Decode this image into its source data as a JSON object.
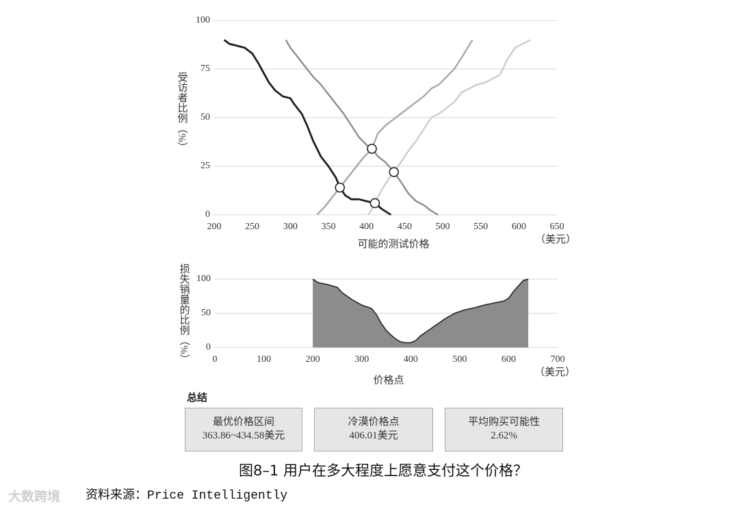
{
  "chart_data": [
    {
      "type": "line",
      "ylabel": "受访者比例（%）",
      "xlabel": "可能的测试价格",
      "xunit": "（美元）",
      "xlim": [
        200,
        650
      ],
      "xticks": [
        200,
        250,
        300,
        350,
        400,
        450,
        500,
        550,
        600,
        650
      ],
      "ylim": [
        0,
        100
      ],
      "yticks": [
        0,
        25,
        50,
        75,
        100
      ],
      "grid": true,
      "series": [
        {
          "color": "#1e1e1e",
          "x": [
            213,
            220,
            230,
            240,
            250,
            258,
            265,
            272,
            280,
            290,
            300,
            305,
            315,
            322,
            330,
            340,
            350,
            360,
            365,
            372,
            380,
            390,
            400,
            411,
            420,
            432
          ],
          "values": [
            90,
            88,
            87,
            86,
            83,
            78,
            73,
            68,
            64,
            61,
            60,
            57,
            52,
            46,
            38,
            30,
            25,
            19,
            14,
            10,
            8,
            8,
            7,
            6,
            3,
            0
          ]
        },
        {
          "color": "#8c8c8c",
          "x": [
            294,
            300,
            310,
            320,
            330,
            340,
            350,
            360,
            370,
            380,
            390,
            400,
            407,
            415,
            425,
            436,
            445,
            455,
            465,
            475,
            485,
            494
          ],
          "values": [
            90,
            86,
            81,
            76,
            71,
            67,
            62,
            57,
            52,
            46,
            40,
            36,
            34,
            30,
            27,
            22,
            17,
            11,
            7,
            5,
            2,
            0
          ]
        },
        {
          "color": "#a6a6a6",
          "x": [
            335,
            345,
            355,
            365,
            375,
            385,
            395,
            407,
            415,
            425,
            435,
            445,
            455,
            465,
            475,
            485,
            495,
            505,
            515,
            525,
            539
          ],
          "values": [
            0,
            4,
            9,
            14,
            19,
            24,
            29,
            34,
            42,
            46,
            49,
            52,
            55,
            58,
            61,
            65,
            67,
            71,
            75,
            81,
            90
          ]
        },
        {
          "color": "#cccccc",
          "x": [
            402,
            406,
            411,
            420,
            430,
            436,
            445,
            455,
            465,
            475,
            485,
            495,
            505,
            515,
            525,
            535,
            545,
            555,
            565,
            575,
            585,
            595,
            605,
            615
          ],
          "values": [
            0,
            2,
            6,
            13,
            19,
            22,
            27,
            33,
            38,
            44,
            50,
            52,
            55,
            58,
            63,
            65,
            67,
            68,
            70,
            72,
            80,
            86,
            88,
            90
          ]
        }
      ],
      "intersections": {
        "x": [
          365,
          407,
          411,
          436
        ],
        "y": [
          14,
          34,
          6,
          22
        ]
      }
    },
    {
      "type": "area",
      "ylabel": "损失销量的比例（%）",
      "xlabel": "价格点",
      "xunit": "（美元）",
      "xlim": [
        0,
        700
      ],
      "xticks": [
        0,
        100,
        200,
        300,
        400,
        500,
        600,
        700
      ],
      "ylim": [
        0,
        100
      ],
      "yticks": [
        0,
        50,
        100
      ],
      "grid": true,
      "color": "#8c8c8c",
      "x": [
        200,
        210,
        230,
        250,
        260,
        280,
        300,
        320,
        330,
        340,
        350,
        360,
        370,
        380,
        390,
        400,
        410,
        420,
        430,
        450,
        470,
        490,
        510,
        530,
        550,
        570,
        590,
        600,
        610,
        620,
        630,
        640
      ],
      "values": [
        100,
        95,
        92,
        88,
        80,
        70,
        62,
        57,
        48,
        35,
        25,
        18,
        12,
        8,
        7,
        7,
        10,
        17,
        22,
        32,
        42,
        50,
        55,
        58,
        62,
        65,
        68,
        72,
        82,
        90,
        98,
        100
      ]
    }
  ],
  "summary": {
    "title": "总结",
    "boxes": [
      {
        "label": "最优价格区间",
        "value": "363.86~434.58美元"
      },
      {
        "label": "冷漠价格点",
        "value": "406.01美元"
      },
      {
        "label": "平均购买可能性",
        "value": "2.62%"
      }
    ]
  },
  "caption": "图8–1 用户在多大程度上愿意支付这个价格？",
  "source": "资料来源：Price Intelligently",
  "watermark": "大数跨境"
}
